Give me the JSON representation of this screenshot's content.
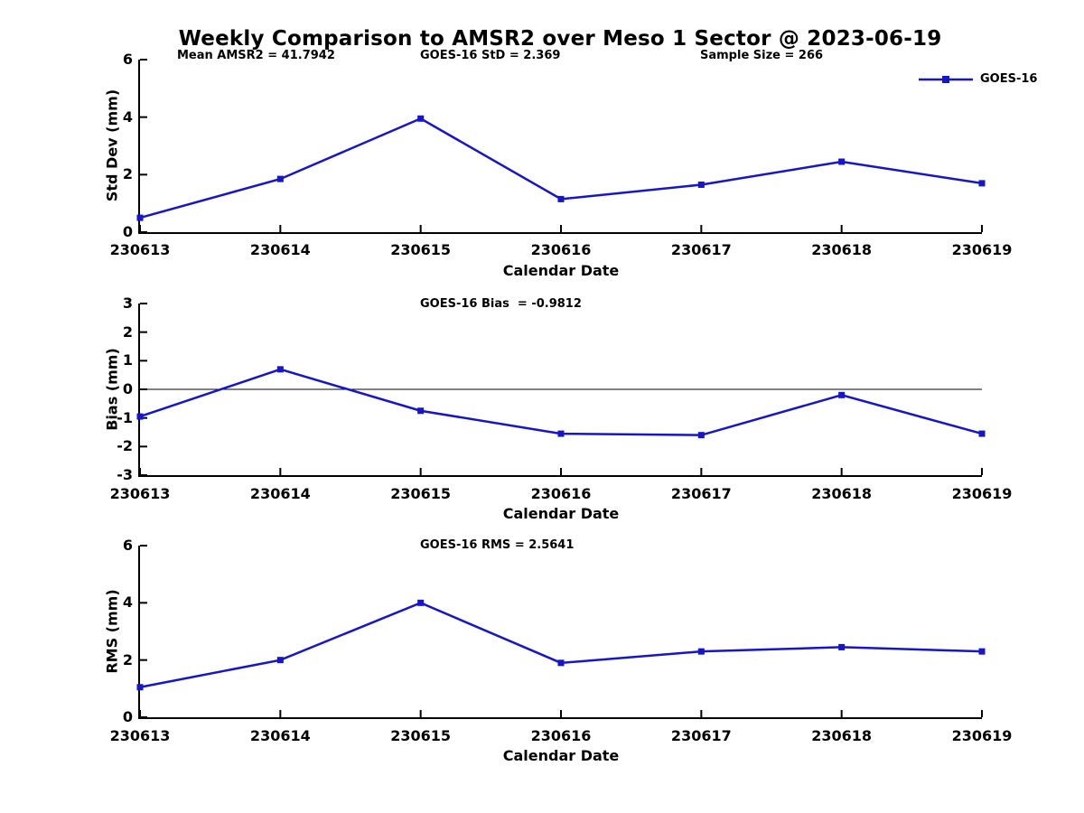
{
  "title": "Weekly Comparison to AMSR2 over Meso 1 Sector @ 2023-06-19",
  "legend": {
    "label": "GOES-16",
    "position": "top-right"
  },
  "colors": {
    "line": "#1515CC",
    "axis": "#000000",
    "background": "#FFFFFF",
    "text": "#000000"
  },
  "chart_data": [
    {
      "type": "line",
      "panel": "std-dev",
      "annotations": [
        "Mean AMSR2 = 41.7942",
        "GOES-16 StD = 2.369",
        "Sample Size = 266"
      ],
      "x_categories": [
        "230613",
        "230614",
        "230615",
        "230616",
        "230617",
        "230618",
        "230619"
      ],
      "series": [
        {
          "name": "GOES-16",
          "marker": "square",
          "values": [
            0.5,
            1.85,
            3.95,
            1.15,
            1.65,
            2.45,
            1.7
          ]
        }
      ],
      "xlabel": "Calendar Date",
      "ylabel": "Std Dev (mm)",
      "ylim": [
        0,
        6
      ],
      "yticks": [
        0,
        2,
        4,
        6
      ],
      "zero_line": false,
      "grid": false
    },
    {
      "type": "line",
      "panel": "bias",
      "annotations": [
        "GOES-16 Bias  = -0.9812"
      ],
      "x_categories": [
        "230613",
        "230614",
        "230615",
        "230616",
        "230617",
        "230618",
        "230619"
      ],
      "series": [
        {
          "name": "GOES-16",
          "marker": "square",
          "values": [
            -0.95,
            0.7,
            -0.75,
            -1.55,
            -1.6,
            -0.2,
            -1.55
          ]
        }
      ],
      "xlabel": "Calendar Date",
      "ylabel": "Bias (mm)",
      "ylim": [
        -3,
        3
      ],
      "yticks": [
        -3,
        -2,
        -1,
        0,
        1,
        2,
        3
      ],
      "zero_line": true,
      "grid": false
    },
    {
      "type": "line",
      "panel": "rms",
      "annotations": [
        "GOES-16 RMS = 2.5641"
      ],
      "x_categories": [
        "230613",
        "230614",
        "230615",
        "230616",
        "230617",
        "230618",
        "230619"
      ],
      "series": [
        {
          "name": "GOES-16",
          "marker": "square",
          "values": [
            1.05,
            2.0,
            4.0,
            1.9,
            2.3,
            2.45,
            2.3
          ]
        }
      ],
      "xlabel": "Calendar Date",
      "ylabel": "RMS (mm)",
      "ylim": [
        0,
        6
      ],
      "yticks": [
        0,
        2,
        4,
        6
      ],
      "zero_line": false,
      "grid": false
    }
  ]
}
